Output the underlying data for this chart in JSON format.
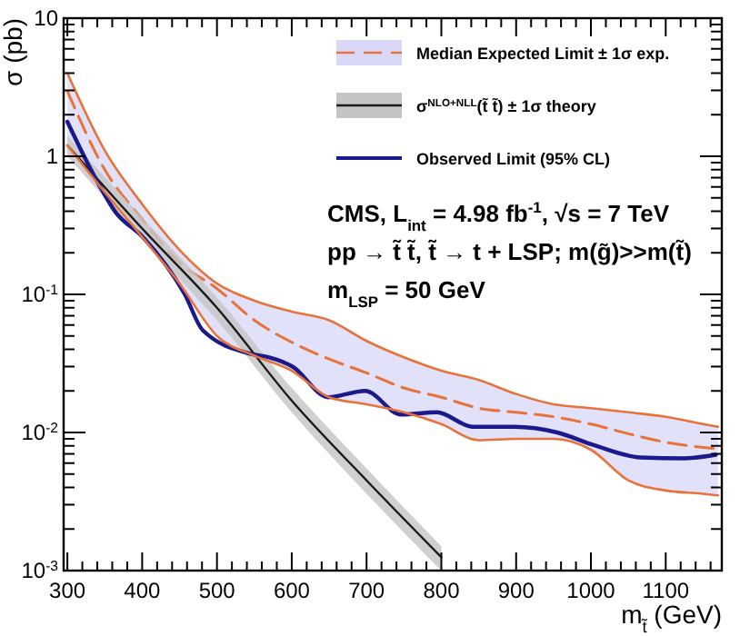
{
  "chart_data": {
    "type": "line",
    "xlabel": "m$_{t̃}$ (GeV)",
    "ylabel": "σ (pb)",
    "log": "y",
    "xlim": [
      295,
      1175
    ],
    "ylim": [
      0.001,
      10
    ],
    "xticks": [
      300,
      {
        "value": 320,
        "label": null
      },
      {
        "value": 340,
        "label": null
      },
      {
        "value": 360,
        "label": null
      },
      {
        "value": 380,
        "label": null
      },
      400,
      {
        "value": 420,
        "label": null
      },
      {
        "value": 440,
        "label": null
      },
      {
        "value": 460,
        "label": null
      },
      {
        "value": 480,
        "label": null
      },
      500,
      {
        "value": 520,
        "label": null
      },
      {
        "value": 540,
        "label": null
      },
      {
        "value": 560,
        "label": null
      },
      {
        "value": 580,
        "label": null
      },
      600,
      {
        "value": 620,
        "label": null
      },
      {
        "value": 640,
        "label": null
      },
      {
        "value": 660,
        "label": null
      },
      {
        "value": 680,
        "label": null
      },
      700,
      {
        "value": 720,
        "label": null
      },
      {
        "value": 740,
        "label": null
      },
      {
        "value": 760,
        "label": null
      },
      {
        "value": 780,
        "label": null
      },
      800,
      {
        "value": 820,
        "label": null
      },
      {
        "value": 840,
        "label": null
      },
      {
        "value": 860,
        "label": null
      },
      {
        "value": 880,
        "label": null
      },
      900,
      {
        "value": 920,
        "label": null
      },
      {
        "value": 940,
        "label": null
      },
      {
        "value": 960,
        "label": null
      },
      {
        "value": 980,
        "label": null
      },
      1000,
      {
        "value": 1020,
        "label": null
      },
      {
        "value": 1040,
        "label": null
      },
      {
        "value": 1060,
        "label": null
      },
      {
        "value": 1080,
        "label": null
      },
      1100,
      {
        "value": 1120,
        "label": null
      },
      {
        "value": 1140,
        "label": null
      },
      {
        "value": 1160,
        "label": null
      }
    ],
    "yticks": [
      {
        "value": 0.001,
        "label": "10$^{-3}$"
      },
      {
        "value": 0.002,
        "label": null
      },
      {
        "value": 0.003,
        "label": null
      },
      {
        "value": 0.004,
        "label": null
      },
      {
        "value": 0.005,
        "label": null
      },
      {
        "value": 0.006,
        "label": null
      },
      {
        "value": 0.007,
        "label": null
      },
      {
        "value": 0.008,
        "label": null
      },
      {
        "value": 0.009,
        "label": null
      },
      {
        "value": 0.01,
        "label": "10$^{-2}$"
      },
      {
        "value": 0.02,
        "label": null
      },
      {
        "value": 0.03,
        "label": null
      },
      {
        "value": 0.04,
        "label": null
      },
      {
        "value": 0.05,
        "label": null
      },
      {
        "value": 0.06,
        "label": null
      },
      {
        "value": 0.07,
        "label": null
      },
      {
        "value": 0.08,
        "label": null
      },
      {
        "value": 0.09,
        "label": null
      },
      {
        "value": 0.1,
        "label": "10$^{-1}$"
      },
      {
        "value": 0.2,
        "label": null
      },
      {
        "value": 0.3,
        "label": null
      },
      {
        "value": 0.4,
        "label": null
      },
      {
        "value": 0.5,
        "label": null
      },
      {
        "value": 0.6,
        "label": null
      },
      {
        "value": 0.7,
        "label": null
      },
      {
        "value": 0.8,
        "label": null
      },
      {
        "value": 0.9,
        "label": null
      },
      {
        "value": 1,
        "label": "1"
      },
      {
        "value": 2,
        "label": null
      },
      {
        "value": 3,
        "label": null
      },
      {
        "value": 4,
        "label": null
      },
      {
        "value": 5,
        "label": null
      },
      {
        "value": 6,
        "label": null
      },
      {
        "value": 7,
        "label": null
      },
      {
        "value": 8,
        "label": null
      },
      {
        "value": 9,
        "label": null
      },
      {
        "value": 10,
        "label": "10"
      }
    ],
    "grid": false,
    "legend": "top right",
    "marker": "none",
    "series": [
      {
        "name": "Median Expected Limit ± 1σ exp.",
        "color": "#e8733a",
        "line_style": "dashed",
        "x": [
          300,
          350,
          400,
          450,
          500,
          550,
          600,
          650,
          700,
          750,
          800,
          850,
          900,
          950,
          1000,
          1050,
          1100,
          1150,
          1170
        ],
        "values": [
          2.96,
          0.8,
          0.35,
          0.17,
          0.11,
          0.065,
          0.045,
          0.034,
          0.027,
          0.021,
          0.018,
          0.015,
          0.014,
          0.013,
          0.0115,
          0.0098,
          0.0085,
          0.0078,
          0.0076
        ],
        "upper": [
          4.0,
          1.1,
          0.45,
          0.21,
          0.12,
          0.09,
          0.075,
          0.065,
          0.046,
          0.035,
          0.028,
          0.024,
          0.019,
          0.016,
          0.015,
          0.014,
          0.013,
          0.0115,
          0.011
        ],
        "lower": [
          1.2,
          0.55,
          0.26,
          0.12,
          0.05,
          0.036,
          0.028,
          0.018,
          0.016,
          0.014,
          0.0115,
          0.0088,
          0.009,
          0.009,
          0.0075,
          0.0045,
          0.0038,
          0.0036,
          0.0035
        ]
      },
      {
        "name": "σ$^{NLO+NLL}$(t̃ t̃) ± 1σ theory",
        "color": "#1a1a1a",
        "line_style": "solid",
        "x": [
          300,
          400,
          500,
          600,
          700,
          800
        ],
        "values": [
          1.2,
          0.3,
          0.08,
          0.017,
          0.0045,
          0.00125
        ],
        "lower": [
          1.0,
          0.25,
          0.065,
          0.014,
          0.0036,
          0.001
        ],
        "upper": [
          1.4,
          0.36,
          0.095,
          0.021,
          0.0055,
          0.0015
        ]
      },
      {
        "name": "Observed Limit (95% CL)",
        "color": "#1a1a8c",
        "line_style": "solid",
        "x": [
          300,
          336,
          365,
          401,
          457,
          481,
          546,
          570,
          601,
          649,
          698,
          746,
          794,
          842,
          898,
          955,
          1004,
          1066,
          1124,
          1167
        ],
        "values": [
          1.78,
          0.72,
          0.39,
          0.26,
          0.1,
          0.055,
          0.037,
          0.035,
          0.03,
          0.018,
          0.02,
          0.0135,
          0.014,
          0.011,
          0.011,
          0.01,
          0.0081,
          0.0066,
          0.0065,
          0.0069
        ]
      },
      {
        "color": "#e8733a",
        "line_style": "solid",
        "x": [
          300,
          350,
          400,
          450,
          500,
          550,
          600,
          650,
          700,
          750,
          800,
          850,
          900,
          950,
          1000,
          1050,
          1100,
          1150,
          1170
        ],
        "values": [
          4.0,
          1.1,
          0.45,
          0.21,
          0.12,
          0.09,
          0.075,
          0.065,
          0.046,
          0.035,
          0.028,
          0.024,
          0.019,
          0.016,
          0.015,
          0.014,
          0.013,
          0.0115,
          0.011
        ]
      },
      {
        "color": "#e8733a",
        "line_style": "solid",
        "x": [
          300,
          350,
          400,
          450,
          500,
          550,
          600,
          650,
          700,
          750,
          800,
          850,
          900,
          950,
          1000,
          1050,
          1100,
          1150,
          1170
        ],
        "values": [
          1.2,
          0.55,
          0.26,
          0.12,
          0.05,
          0.036,
          0.028,
          0.018,
          0.016,
          0.014,
          0.0115,
          0.0088,
          0.009,
          0.009,
          0.0075,
          0.0045,
          0.0038,
          0.0036,
          0.0035
        ]
      }
    ],
    "annotations": [
      "CMS, L$_{int}$ = 4.98 fb$^{-1}$, √s = 7 TeV",
      "pp → t̃ t̃, t̃ → t + LSP; m(g̃)>>m(t̃)",
      "m$_{LSP}$ = 50 GeV"
    ]
  }
}
